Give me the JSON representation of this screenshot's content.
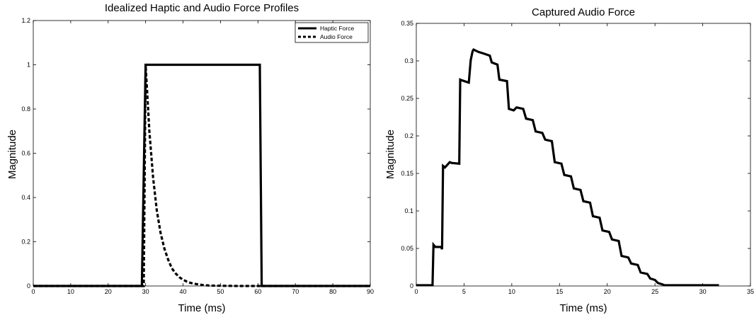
{
  "chart_data": [
    {
      "type": "line",
      "title": "Idealized Haptic and Audio Force Profiles",
      "xlabel": "Time (ms)",
      "ylabel": "Magnitude",
      "xlim": [
        0,
        90
      ],
      "ylim": [
        0,
        1.2
      ],
      "xticks": [
        "0",
        "10",
        "20",
        "30",
        "40",
        "50",
        "60",
        "70",
        "80",
        "90"
      ],
      "yticks": [
        "0",
        "0.2",
        "0.4",
        "0.6",
        "0.8",
        "1",
        "1.2"
      ],
      "legend_position": "top-right",
      "grid": false,
      "series": [
        {
          "name": "Haptic Force",
          "style": "solid",
          "color": "#000000",
          "x": [
            0,
            29,
            30,
            60.5,
            61,
            90
          ],
          "y": [
            0,
            0,
            1,
            1,
            0,
            0
          ]
        },
        {
          "name": "Audio Force",
          "style": "dashed",
          "color": "#000000",
          "x": [
            0,
            29.5,
            30,
            31,
            32,
            33,
            34,
            35,
            36,
            37,
            38,
            39,
            40,
            41,
            42,
            43,
            45,
            47,
            50,
            55,
            60,
            90
          ],
          "y": [
            0,
            0,
            1.0,
            0.7,
            0.49,
            0.34,
            0.24,
            0.17,
            0.12,
            0.08,
            0.057,
            0.04,
            0.028,
            0.02,
            0.014,
            0.01,
            0.005,
            0.002,
            0.001,
            0,
            0,
            0
          ]
        }
      ]
    },
    {
      "type": "line",
      "title": "Captured Audio Force",
      "xlabel": "Time (ms)",
      "ylabel": "Magnitude",
      "xlim": [
        0,
        35
      ],
      "ylim": [
        0,
        0.35
      ],
      "xticks": [
        "0",
        "5",
        "10",
        "15",
        "20",
        "25",
        "30",
        "35"
      ],
      "yticks": [
        "0",
        "0.05",
        "0.1",
        "0.15",
        "0.2",
        "0.25",
        "0.3",
        "0.35"
      ],
      "grid": false,
      "series": [
        {
          "color": "#000000",
          "style": "solid",
          "x": [
            0,
            1.7,
            1.8,
            2.0,
            2.6,
            2.7,
            2.8,
            3.0,
            3.5,
            3.7,
            4.5,
            4.6,
            4.8,
            5.5,
            5.7,
            5.9,
            6.0,
            6.5,
            7.0,
            7.7,
            7.9,
            8.5,
            8.7,
            9.5,
            9.7,
            10.2,
            10.5,
            11.2,
            11.5,
            12.2,
            12.5,
            13.2,
            13.5,
            14.2,
            14.5,
            15.2,
            15.5,
            16.2,
            16.5,
            17.2,
            17.5,
            18.2,
            18.5,
            19.2,
            19.5,
            20.2,
            20.5,
            21.2,
            21.5,
            22.2,
            22.5,
            23.2,
            23.5,
            24.2,
            24.5,
            25.0,
            25.3,
            25.8,
            26.0,
            31.7
          ],
          "y": [
            0.001,
            0.001,
            0.055,
            0.052,
            0.052,
            0.049,
            0.16,
            0.158,
            0.165,
            0.164,
            0.163,
            0.275,
            0.274,
            0.271,
            0.301,
            0.313,
            0.315,
            0.312,
            0.31,
            0.307,
            0.298,
            0.295,
            0.275,
            0.273,
            0.236,
            0.234,
            0.238,
            0.236,
            0.223,
            0.221,
            0.206,
            0.204,
            0.195,
            0.193,
            0.165,
            0.163,
            0.148,
            0.146,
            0.13,
            0.128,
            0.113,
            0.111,
            0.093,
            0.091,
            0.074,
            0.072,
            0.062,
            0.06,
            0.04,
            0.038,
            0.03,
            0.028,
            0.018,
            0.016,
            0.01,
            0.008,
            0.004,
            0.002,
            0.001,
            0.001
          ]
        }
      ]
    }
  ]
}
